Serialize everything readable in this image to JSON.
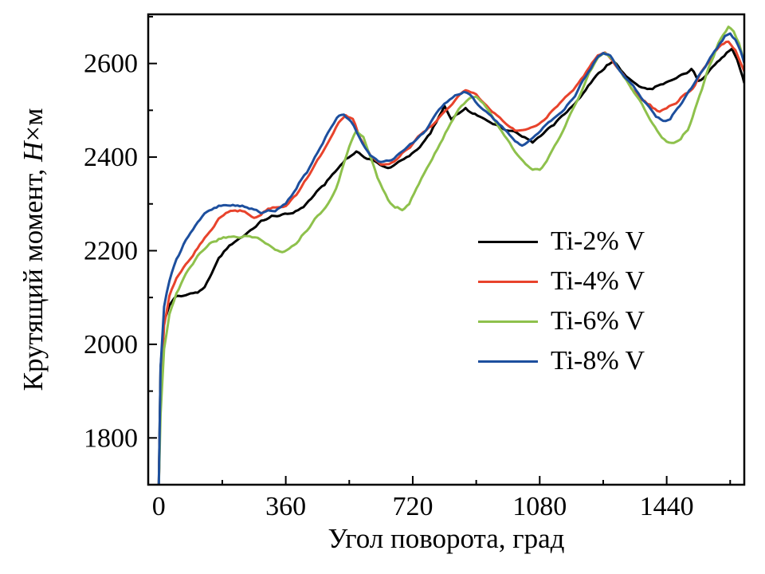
{
  "chart_data": {
    "type": "line",
    "title": "",
    "xlabel": "Угол поворота, град",
    "ylabel": "Крутящий момент, Н×м",
    "ylabel_parts": {
      "prefix": "Крутящий момент, ",
      "italic": "Н",
      "suffix": "×м"
    },
    "xlim": [
      -30,
      1660
    ],
    "ylim": [
      1700,
      2705
    ],
    "x_ticks": [
      0,
      360,
      720,
      1080,
      1440
    ],
    "x_minor_ticks": [
      180,
      540,
      900,
      1260,
      1620
    ],
    "y_ticks": [
      1800,
      2000,
      2200,
      2400,
      2600
    ],
    "y_minor_ticks": [
      1900,
      2100,
      2300,
      2500,
      2700
    ],
    "grid": false,
    "legend_position": "right-center",
    "frame_color": "#000000",
    "series": [
      {
        "name": "Ti-2% V",
        "color": "#000000",
        "points": [
          [
            0,
            1700
          ],
          [
            5,
            1950
          ],
          [
            15,
            2050
          ],
          [
            30,
            2080
          ],
          [
            50,
            2100
          ],
          [
            70,
            2105
          ],
          [
            90,
            2110
          ],
          [
            110,
            2115
          ],
          [
            130,
            2120
          ],
          [
            150,
            2150
          ],
          [
            170,
            2180
          ],
          [
            200,
            2210
          ],
          [
            230,
            2230
          ],
          [
            260,
            2245
          ],
          [
            290,
            2260
          ],
          [
            320,
            2270
          ],
          [
            350,
            2275
          ],
          [
            380,
            2285
          ],
          [
            410,
            2295
          ],
          [
            440,
            2315
          ],
          [
            470,
            2340
          ],
          [
            500,
            2370
          ],
          [
            530,
            2400
          ],
          [
            560,
            2410
          ],
          [
            590,
            2395
          ],
          [
            620,
            2385
          ],
          [
            650,
            2380
          ],
          [
            680,
            2390
          ],
          [
            710,
            2400
          ],
          [
            740,
            2420
          ],
          [
            770,
            2450
          ],
          [
            795,
            2490
          ],
          [
            810,
            2510
          ],
          [
            830,
            2480
          ],
          [
            850,
            2490
          ],
          [
            870,
            2500
          ],
          [
            890,
            2490
          ],
          [
            910,
            2485
          ],
          [
            940,
            2480
          ],
          [
            970,
            2465
          ],
          [
            1000,
            2455
          ],
          [
            1030,
            2445
          ],
          [
            1060,
            2435
          ],
          [
            1090,
            2455
          ],
          [
            1120,
            2470
          ],
          [
            1150,
            2490
          ],
          [
            1180,
            2515
          ],
          [
            1210,
            2545
          ],
          [
            1240,
            2575
          ],
          [
            1270,
            2595
          ],
          [
            1290,
            2600
          ],
          [
            1310,
            2585
          ],
          [
            1340,
            2565
          ],
          [
            1370,
            2550
          ],
          [
            1400,
            2545
          ],
          [
            1430,
            2550
          ],
          [
            1460,
            2565
          ],
          [
            1490,
            2580
          ],
          [
            1510,
            2590
          ],
          [
            1530,
            2565
          ],
          [
            1550,
            2575
          ],
          [
            1570,
            2590
          ],
          [
            1590,
            2605
          ],
          [
            1610,
            2620
          ],
          [
            1625,
            2630
          ],
          [
            1640,
            2610
          ],
          [
            1655,
            2575
          ],
          [
            1660,
            2560
          ]
        ]
      },
      {
        "name": "Ti-4% V",
        "color": "#e8432c",
        "points": [
          [
            0,
            1700
          ],
          [
            5,
            1900
          ],
          [
            15,
            2040
          ],
          [
            30,
            2100
          ],
          [
            50,
            2140
          ],
          [
            70,
            2165
          ],
          [
            90,
            2185
          ],
          [
            110,
            2205
          ],
          [
            130,
            2225
          ],
          [
            150,
            2245
          ],
          [
            170,
            2265
          ],
          [
            190,
            2280
          ],
          [
            210,
            2290
          ],
          [
            230,
            2290
          ],
          [
            250,
            2280
          ],
          [
            270,
            2270
          ],
          [
            290,
            2275
          ],
          [
            310,
            2285
          ],
          [
            330,
            2290
          ],
          [
            360,
            2300
          ],
          [
            390,
            2320
          ],
          [
            420,
            2350
          ],
          [
            450,
            2390
          ],
          [
            480,
            2430
          ],
          [
            510,
            2475
          ],
          [
            530,
            2490
          ],
          [
            550,
            2480
          ],
          [
            570,
            2440
          ],
          [
            600,
            2400
          ],
          [
            630,
            2385
          ],
          [
            660,
            2390
          ],
          [
            690,
            2405
          ],
          [
            720,
            2425
          ],
          [
            750,
            2450
          ],
          [
            780,
            2475
          ],
          [
            810,
            2500
          ],
          [
            840,
            2520
          ],
          [
            870,
            2540
          ],
          [
            900,
            2535
          ],
          [
            930,
            2515
          ],
          [
            960,
            2490
          ],
          [
            990,
            2465
          ],
          [
            1010,
            2455
          ],
          [
            1040,
            2460
          ],
          [
            1070,
            2470
          ],
          [
            1100,
            2485
          ],
          [
            1130,
            2505
          ],
          [
            1160,
            2530
          ],
          [
            1190,
            2560
          ],
          [
            1220,
            2595
          ],
          [
            1245,
            2615
          ],
          [
            1265,
            2620
          ],
          [
            1285,
            2605
          ],
          [
            1310,
            2580
          ],
          [
            1340,
            2550
          ],
          [
            1370,
            2525
          ],
          [
            1400,
            2505
          ],
          [
            1420,
            2495
          ],
          [
            1440,
            2500
          ],
          [
            1460,
            2515
          ],
          [
            1480,
            2530
          ],
          [
            1500,
            2540
          ],
          [
            1520,
            2555
          ],
          [
            1545,
            2585
          ],
          [
            1570,
            2615
          ],
          [
            1595,
            2640
          ],
          [
            1615,
            2650
          ],
          [
            1635,
            2630
          ],
          [
            1650,
            2600
          ],
          [
            1660,
            2580
          ]
        ]
      },
      {
        "name": "Ti-6% V",
        "color": "#8ec14c",
        "points": [
          [
            0,
            1700
          ],
          [
            5,
            1850
          ],
          [
            15,
            1990
          ],
          [
            30,
            2060
          ],
          [
            50,
            2110
          ],
          [
            70,
            2145
          ],
          [
            90,
            2170
          ],
          [
            110,
            2190
          ],
          [
            130,
            2205
          ],
          [
            150,
            2215
          ],
          [
            170,
            2225
          ],
          [
            190,
            2230
          ],
          [
            220,
            2232
          ],
          [
            250,
            2230
          ],
          [
            280,
            2225
          ],
          [
            310,
            2215
          ],
          [
            330,
            2205
          ],
          [
            350,
            2200
          ],
          [
            370,
            2205
          ],
          [
            390,
            2215
          ],
          [
            420,
            2240
          ],
          [
            450,
            2270
          ],
          [
            480,
            2300
          ],
          [
            510,
            2350
          ],
          [
            540,
            2420
          ],
          [
            560,
            2455
          ],
          [
            580,
            2440
          ],
          [
            600,
            2400
          ],
          [
            620,
            2360
          ],
          [
            650,
            2310
          ],
          [
            670,
            2290
          ],
          [
            690,
            2285
          ],
          [
            710,
            2300
          ],
          [
            730,
            2330
          ],
          [
            760,
            2380
          ],
          [
            790,
            2420
          ],
          [
            820,
            2460
          ],
          [
            850,
            2500
          ],
          [
            880,
            2525
          ],
          [
            900,
            2530
          ],
          [
            920,
            2515
          ],
          [
            950,
            2480
          ],
          [
            980,
            2440
          ],
          [
            1010,
            2410
          ],
          [
            1040,
            2385
          ],
          [
            1060,
            2372
          ],
          [
            1080,
            2375
          ],
          [
            1100,
            2390
          ],
          [
            1130,
            2430
          ],
          [
            1160,
            2480
          ],
          [
            1190,
            2530
          ],
          [
            1220,
            2580
          ],
          [
            1245,
            2610
          ],
          [
            1265,
            2620
          ],
          [
            1285,
            2610
          ],
          [
            1310,
            2585
          ],
          [
            1340,
            2550
          ],
          [
            1370,
            2510
          ],
          [
            1400,
            2470
          ],
          [
            1420,
            2445
          ],
          [
            1440,
            2435
          ],
          [
            1460,
            2432
          ],
          [
            1480,
            2440
          ],
          [
            1500,
            2460
          ],
          [
            1520,
            2500
          ],
          [
            1540,
            2545
          ],
          [
            1560,
            2590
          ],
          [
            1580,
            2630
          ],
          [
            1600,
            2665
          ],
          [
            1615,
            2680
          ],
          [
            1630,
            2670
          ],
          [
            1645,
            2640
          ],
          [
            1660,
            2595
          ]
        ]
      },
      {
        "name": "Ti-8% V",
        "color": "#1d4f9e",
        "points": [
          [
            0,
            1700
          ],
          [
            5,
            1950
          ],
          [
            15,
            2080
          ],
          [
            30,
            2140
          ],
          [
            50,
            2185
          ],
          [
            70,
            2215
          ],
          [
            90,
            2240
          ],
          [
            110,
            2260
          ],
          [
            130,
            2275
          ],
          [
            150,
            2285
          ],
          [
            170,
            2295
          ],
          [
            190,
            2300
          ],
          [
            210,
            2300
          ],
          [
            230,
            2295
          ],
          [
            250,
            2290
          ],
          [
            270,
            2285
          ],
          [
            290,
            2280
          ],
          [
            310,
            2285
          ],
          [
            330,
            2290
          ],
          [
            360,
            2305
          ],
          [
            390,
            2330
          ],
          [
            420,
            2365
          ],
          [
            450,
            2410
          ],
          [
            480,
            2455
          ],
          [
            505,
            2485
          ],
          [
            525,
            2490
          ],
          [
            545,
            2475
          ],
          [
            570,
            2440
          ],
          [
            600,
            2405
          ],
          [
            630,
            2390
          ],
          [
            660,
            2395
          ],
          [
            690,
            2410
          ],
          [
            720,
            2430
          ],
          [
            750,
            2455
          ],
          [
            780,
            2485
          ],
          [
            810,
            2510
          ],
          [
            840,
            2530
          ],
          [
            865,
            2540
          ],
          [
            890,
            2530
          ],
          [
            920,
            2505
          ],
          [
            950,
            2480
          ],
          [
            980,
            2455
          ],
          [
            1010,
            2435
          ],
          [
            1030,
            2430
          ],
          [
            1060,
            2440
          ],
          [
            1090,
            2460
          ],
          [
            1120,
            2480
          ],
          [
            1150,
            2505
          ],
          [
            1180,
            2535
          ],
          [
            1210,
            2570
          ],
          [
            1240,
            2605
          ],
          [
            1260,
            2620
          ],
          [
            1280,
            2615
          ],
          [
            1300,
            2595
          ],
          [
            1330,
            2565
          ],
          [
            1360,
            2535
          ],
          [
            1390,
            2505
          ],
          [
            1410,
            2485
          ],
          [
            1430,
            2475
          ],
          [
            1450,
            2485
          ],
          [
            1470,
            2505
          ],
          [
            1490,
            2525
          ],
          [
            1510,
            2545
          ],
          [
            1530,
            2570
          ],
          [
            1550,
            2595
          ],
          [
            1570,
            2620
          ],
          [
            1590,
            2645
          ],
          [
            1605,
            2660
          ],
          [
            1620,
            2665
          ],
          [
            1635,
            2650
          ],
          [
            1650,
            2620
          ],
          [
            1660,
            2595
          ]
        ]
      }
    ]
  }
}
